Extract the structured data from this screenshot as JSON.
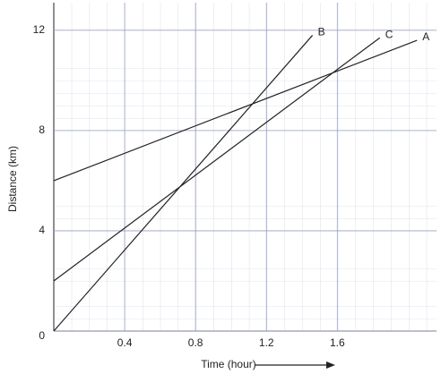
{
  "chart_data": {
    "type": "line",
    "xlabel": "Time (hour)",
    "ylabel": "Distance (km)",
    "series": [
      {
        "name": "A",
        "color": "#222222",
        "x": [
          0,
          2.05
        ],
        "values": [
          6,
          11.6
        ]
      },
      {
        "name": "B",
        "color": "#222222",
        "x": [
          0,
          1.46
        ],
        "values": [
          0,
          11.8
        ]
      },
      {
        "name": "C",
        "color": "#222222",
        "x": [
          0,
          1.84
        ],
        "values": [
          2,
          11.7
        ]
      }
    ],
    "xlim": [
      0,
      2.16
    ],
    "ylim": [
      0,
      13.1
    ],
    "xticks": [
      0.4,
      0.8,
      1.2,
      1.6
    ],
    "yticks": [
      0,
      4,
      8,
      12
    ],
    "grid": true
  }
}
